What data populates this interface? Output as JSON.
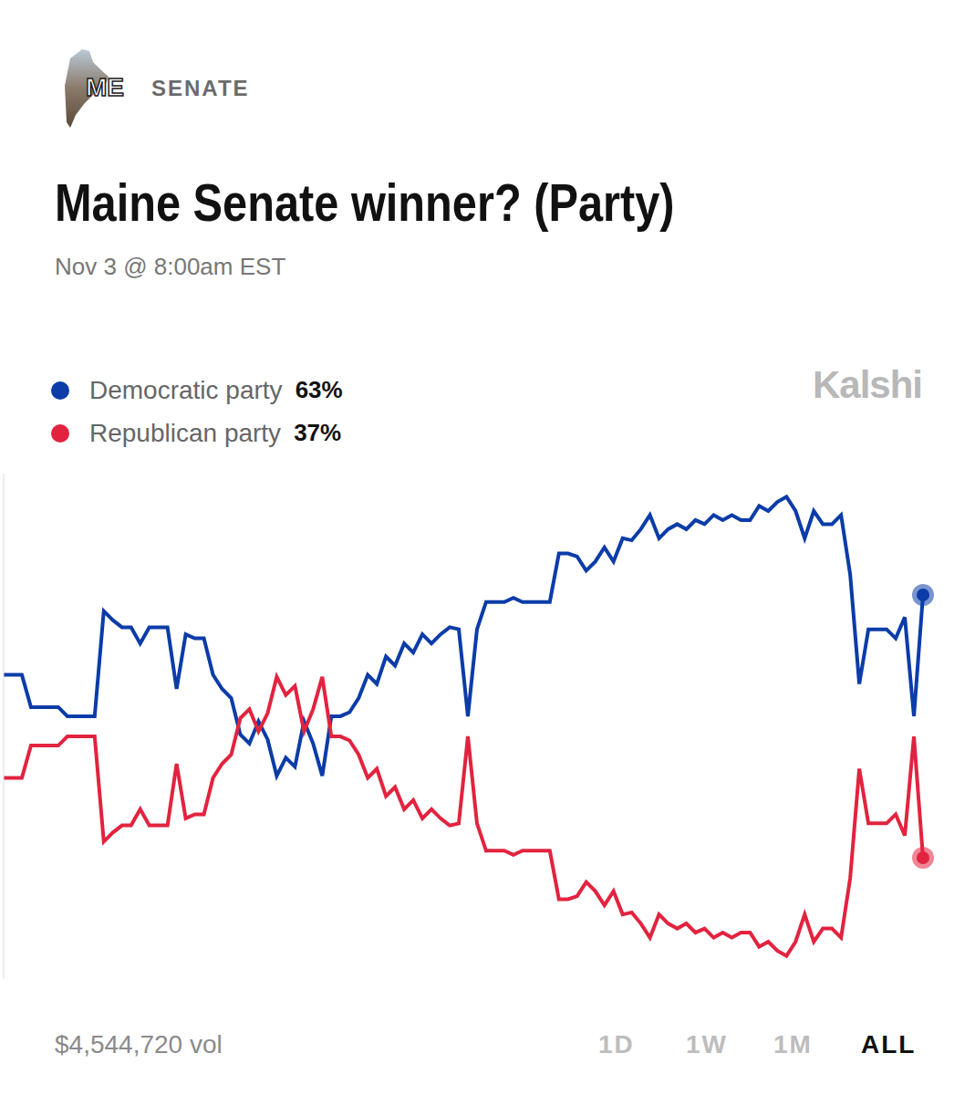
{
  "header": {
    "state": "ME",
    "category": "SENATE"
  },
  "watermark": "Kalshi",
  "footer": {
    "volume": "$4,544,720 vol",
    "range_buttons": [
      "1D",
      "1W",
      "1M",
      "ALL"
    ],
    "active_range": "ALL"
  },
  "chart_data": {
    "type": "line",
    "title": "Maine Senate winner? (Party)",
    "subtitle": "Nov 3 @ 8:00am EST",
    "legend": "top-left",
    "grid": false,
    "tick_labels": false,
    "ylim": [
      25,
      75
    ],
    "categories": [
      null,
      null,
      null,
      null,
      null,
      null,
      null,
      null,
      null,
      null,
      null,
      null,
      null,
      null,
      null,
      null,
      null,
      null,
      null,
      null,
      null,
      null,
      null,
      null,
      null,
      null,
      null,
      null,
      null,
      null,
      null,
      null,
      null,
      null,
      null,
      null,
      null,
      null,
      null,
      null,
      null,
      null,
      null,
      null,
      null,
      null,
      null,
      null,
      null,
      null,
      null,
      null,
      null,
      null,
      null,
      null,
      null,
      null,
      null,
      null,
      null,
      null,
      null,
      null,
      null,
      null,
      null,
      null,
      null,
      null,
      null,
      null,
      null,
      null,
      null,
      null,
      null,
      null,
      null,
      null,
      null,
      null,
      null,
      null,
      null,
      null,
      null,
      null,
      null,
      null,
      null,
      null,
      null,
      null,
      null,
      null,
      null,
      null,
      null,
      null,
      null,
      null
    ],
    "series": [
      {
        "name": "Democratic party",
        "color": "#0b3ca8",
        "current_label": "63%",
        "values": [
          55.1,
          55.1,
          55.1,
          51.9,
          51.9,
          51.9,
          51.9,
          51.0,
          51.0,
          51.0,
          51.0,
          61.4,
          60.5,
          59.8,
          59.8,
          58.2,
          59.8,
          59.8,
          59.8,
          53.7,
          59.1,
          58.7,
          58.7,
          55.1,
          53.7,
          52.8,
          49.2,
          48.3,
          50.5,
          48.7,
          45.1,
          46.9,
          46.0,
          50.5,
          48.3,
          45.1,
          51.0,
          51.0,
          51.4,
          52.8,
          55.1,
          54.2,
          56.9,
          56.0,
          58.2,
          57.3,
          59.1,
          58.2,
          59.1,
          59.8,
          59.6,
          51.0,
          59.6,
          62.3,
          62.3,
          62.3,
          62.7,
          62.3,
          62.3,
          62.3,
          62.3,
          67.1,
          67.1,
          66.8,
          65.4,
          66.3,
          67.7,
          66.3,
          68.6,
          68.4,
          69.5,
          70.9,
          68.6,
          69.5,
          70.0,
          69.5,
          70.4,
          70.0,
          70.9,
          70.4,
          70.9,
          70.4,
          70.4,
          71.8,
          71.3,
          72.2,
          72.7,
          71.3,
          68.6,
          71.3,
          70.0,
          70.0,
          70.9,
          65.0,
          54.2,
          59.6,
          59.6,
          59.6,
          58.7,
          60.8,
          51.0,
          63.0
        ]
      },
      {
        "name": "Republican party",
        "color": "#e2233f",
        "current_label": "37%",
        "values": [
          44.9,
          44.9,
          44.9,
          48.1,
          48.1,
          48.1,
          48.1,
          49.0,
          49.0,
          49.0,
          49.0,
          38.6,
          39.5,
          40.2,
          40.2,
          41.8,
          40.2,
          40.2,
          40.2,
          46.3,
          40.9,
          41.3,
          41.3,
          44.9,
          46.3,
          47.2,
          50.8,
          51.7,
          49.5,
          51.3,
          54.9,
          53.1,
          54.0,
          49.5,
          51.7,
          54.9,
          49.0,
          49.0,
          48.6,
          47.2,
          44.9,
          45.8,
          43.1,
          44.0,
          41.8,
          42.7,
          40.9,
          41.8,
          40.9,
          40.2,
          40.4,
          49.0,
          40.4,
          37.7,
          37.7,
          37.7,
          37.3,
          37.7,
          37.7,
          37.7,
          37.7,
          32.9,
          32.9,
          33.2,
          34.6,
          33.7,
          32.3,
          33.7,
          31.4,
          31.6,
          30.5,
          29.1,
          31.4,
          30.5,
          30.0,
          30.5,
          29.6,
          30.0,
          29.1,
          29.6,
          29.1,
          29.6,
          29.6,
          28.2,
          28.7,
          27.8,
          27.3,
          28.7,
          31.4,
          28.7,
          30.0,
          30.0,
          29.1,
          35.0,
          45.8,
          40.4,
          40.4,
          40.4,
          41.3,
          39.2,
          49.0,
          37.0
        ]
      }
    ]
  }
}
